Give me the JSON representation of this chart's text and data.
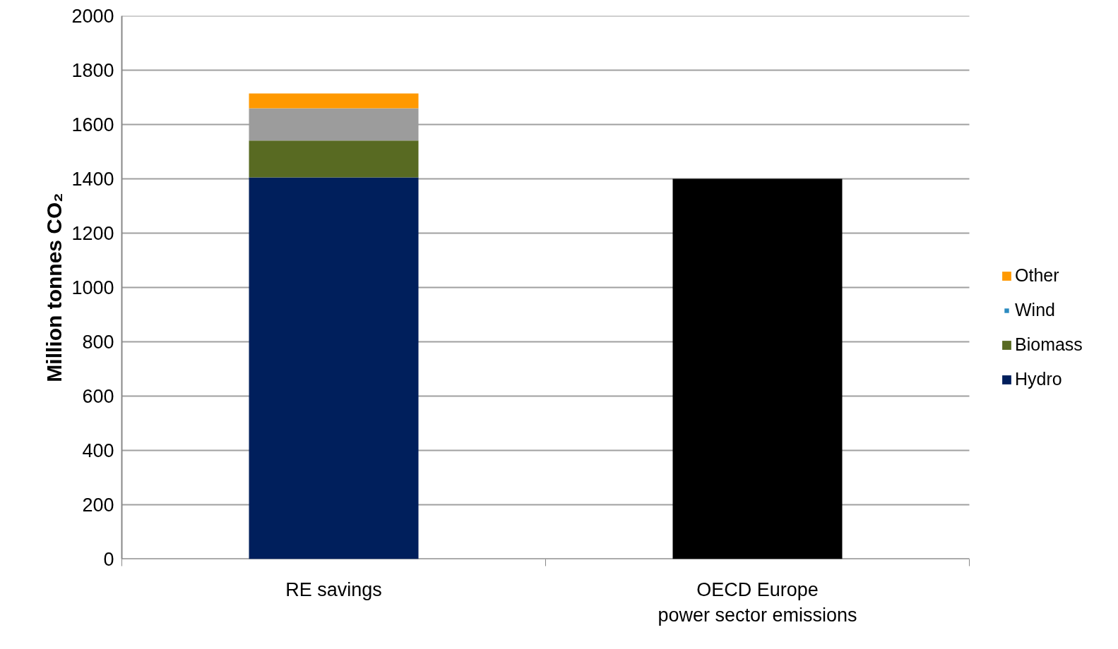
{
  "chart_data": {
    "type": "bar",
    "stacked": true,
    "ylabel": "Million tonnes CO₂",
    "categories": [
      "RE savings",
      "OECD Europe\npower sector emissions"
    ],
    "series": [
      {
        "name": "Hydro",
        "color": "#001f5c",
        "values": [
          1405,
          null
        ]
      },
      {
        "name": "Biomass",
        "color": "#586a22",
        "values": [
          136,
          null
        ]
      },
      {
        "name": "Wind",
        "color": "#2b8bc0",
        "values": [
          null,
          null
        ]
      },
      {
        "color": "#9c9c9c",
        "values": [
          119,
          null
        ]
      },
      {
        "name": "Other",
        "color": "#ff9900",
        "values": [
          54,
          null
        ]
      },
      {
        "color": "#000000",
        "values": [
          null,
          1400
        ]
      }
    ],
    "ylim": [
      0,
      2000
    ],
    "yticks": [
      0,
      200,
      400,
      600,
      800,
      1000,
      1200,
      1400,
      1600,
      1800,
      2000
    ],
    "grid": "y",
    "legend": "right"
  }
}
